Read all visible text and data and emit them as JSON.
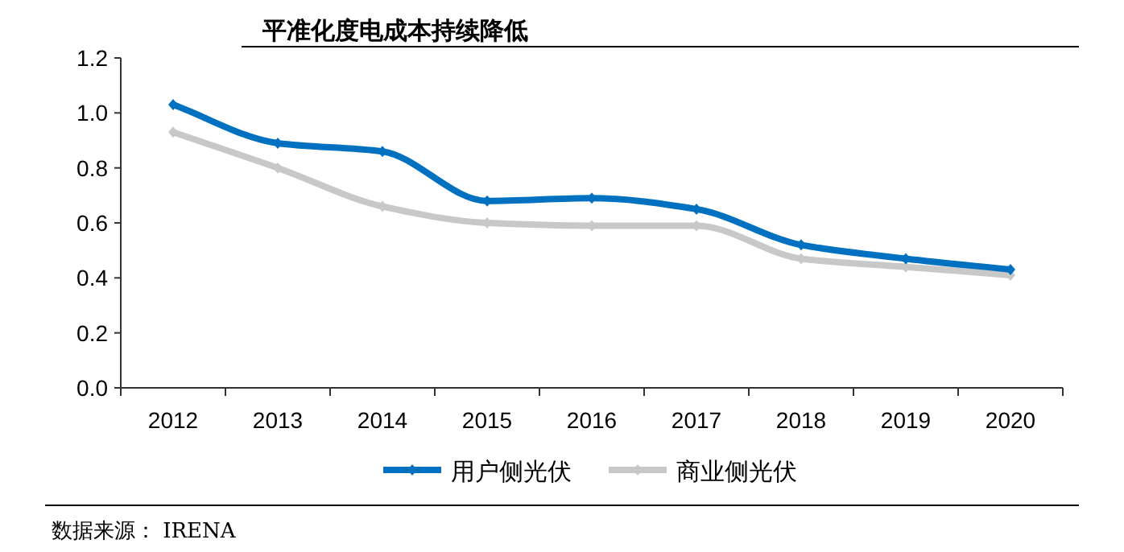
{
  "chart_data": {
    "type": "line",
    "title": "平准化度电成本持续降低",
    "categories": [
      "2012",
      "2013",
      "2014",
      "2015",
      "2016",
      "2017",
      "2018",
      "2019",
      "2020"
    ],
    "series": [
      {
        "name": "用户侧光伏",
        "color": "#0070c0",
        "values": [
          1.03,
          0.89,
          0.86,
          0.68,
          0.69,
          0.65,
          0.52,
          0.47,
          0.43
        ]
      },
      {
        "name": "商业侧光伏",
        "color": "#c8c8c8",
        "values": [
          0.93,
          0.8,
          0.66,
          0.6,
          0.59,
          0.59,
          0.47,
          0.44,
          0.41
        ]
      }
    ],
    "ylim": [
      0,
      1.2
    ],
    "yticks": [
      {
        "value": 0,
        "label": "0.0"
      },
      {
        "value": 0.2,
        "label": "0.2"
      },
      {
        "value": 0.4,
        "label": "0.4"
      },
      {
        "value": 0.6,
        "label": "0.6"
      },
      {
        "value": 0.8,
        "label": "0.8"
      },
      {
        "value": 1,
        "label": "1.0"
      },
      {
        "value": 1.2,
        "label": "1.2"
      }
    ],
    "grid": false,
    "legend": "bottom",
    "marker": "diamond",
    "line_style": "solid",
    "annotations": [
      "数据来源： IRENA"
    ]
  }
}
